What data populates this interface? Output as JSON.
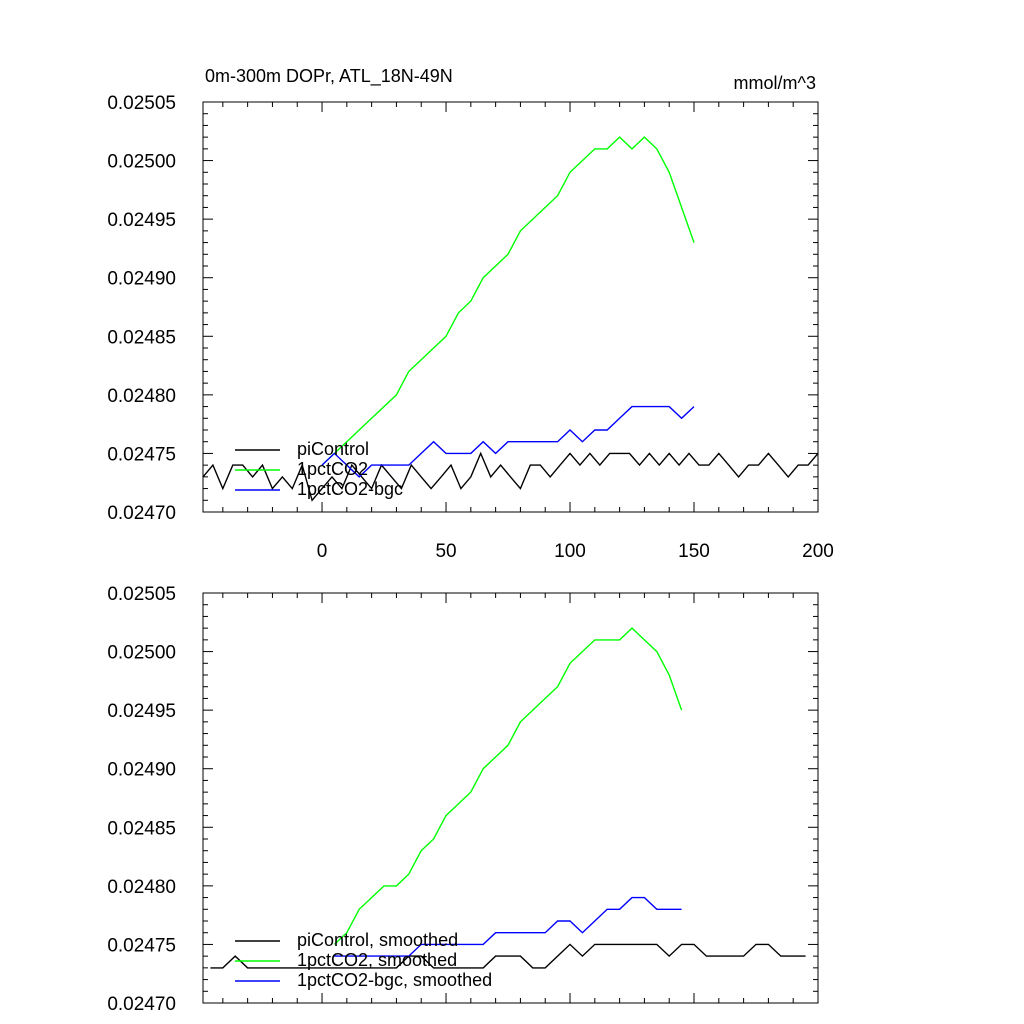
{
  "chart_data": [
    {
      "type": "line",
      "title": "0m-300m DOPr, ATL_18N-49N",
      "units": "mmol/m^3",
      "xlim": [
        -48,
        200
      ],
      "ylim": [
        0.0247,
        0.02505
      ],
      "x_ticks": [
        "0",
        "50",
        "100",
        "150",
        "200"
      ],
      "y_ticks": [
        "0.02505",
        "0.02500",
        "0.02495",
        "0.02490",
        "0.02485",
        "0.02480",
        "0.02475",
        "0.02470"
      ],
      "legend_position": "bottom-left",
      "series": [
        {
          "name": "piControl",
          "color": "#000000",
          "x": [
            -48,
            -44,
            -40,
            -36,
            -32,
            -28,
            -24,
            -20,
            -16,
            -12,
            -8,
            -4,
            0,
            4,
            8,
            12,
            16,
            20,
            24,
            28,
            32,
            36,
            40,
            44,
            48,
            52,
            56,
            60,
            64,
            68,
            72,
            76,
            80,
            84,
            88,
            92,
            96,
            100,
            104,
            108,
            112,
            116,
            120,
            124,
            128,
            132,
            136,
            140,
            144,
            148,
            152,
            156,
            160,
            164,
            168,
            172,
            176,
            180,
            184,
            188,
            192,
            196,
            200
          ],
          "values": [
            0.02473,
            0.02474,
            0.02472,
            0.02474,
            0.02474,
            0.02473,
            0.02474,
            0.02472,
            0.02473,
            0.02472,
            0.02474,
            0.02471,
            0.02472,
            0.02473,
            0.02472,
            0.02474,
            0.02473,
            0.02472,
            0.02474,
            0.02473,
            0.02472,
            0.02474,
            0.02473,
            0.02472,
            0.02473,
            0.02474,
            0.02472,
            0.02473,
            0.02475,
            0.02473,
            0.02474,
            0.02473,
            0.02472,
            0.02474,
            0.02474,
            0.02473,
            0.02474,
            0.02475,
            0.02474,
            0.02475,
            0.02474,
            0.02475,
            0.02475,
            0.02475,
            0.02474,
            0.02475,
            0.02474,
            0.02475,
            0.02474,
            0.02475,
            0.02474,
            0.02474,
            0.02475,
            0.02474,
            0.02473,
            0.02474,
            0.02474,
            0.02475,
            0.02474,
            0.02473,
            0.02474,
            0.02474,
            0.02475
          ]
        },
        {
          "name": "1pctCO2",
          "color": "#00ff00",
          "x": [
            0,
            5,
            10,
            15,
            20,
            25,
            30,
            35,
            40,
            45,
            50,
            55,
            60,
            65,
            70,
            75,
            80,
            85,
            90,
            95,
            100,
            105,
            110,
            115,
            120,
            125,
            130,
            135,
            140,
            145,
            150
          ],
          "values": [
            0.02474,
            0.02475,
            0.02476,
            0.02477,
            0.02478,
            0.02479,
            0.0248,
            0.02482,
            0.02483,
            0.02484,
            0.02485,
            0.02487,
            0.02488,
            0.0249,
            0.02491,
            0.02492,
            0.02494,
            0.02495,
            0.02496,
            0.02497,
            0.02499,
            0.025,
            0.02501,
            0.02501,
            0.02502,
            0.02501,
            0.02502,
            0.02501,
            0.02499,
            0.02496,
            0.02493
          ]
        },
        {
          "name": "1pctCO2-bgc",
          "color": "#0000ff",
          "x": [
            0,
            5,
            10,
            15,
            20,
            25,
            30,
            35,
            40,
            45,
            50,
            55,
            60,
            65,
            70,
            75,
            80,
            85,
            90,
            95,
            100,
            105,
            110,
            115,
            120,
            125,
            130,
            135,
            140,
            145,
            150
          ],
          "values": [
            0.02474,
            0.02475,
            0.02474,
            0.02473,
            0.02474,
            0.02474,
            0.02474,
            0.02474,
            0.02475,
            0.02476,
            0.02475,
            0.02475,
            0.02475,
            0.02476,
            0.02475,
            0.02476,
            0.02476,
            0.02476,
            0.02476,
            0.02476,
            0.02477,
            0.02476,
            0.02477,
            0.02477,
            0.02478,
            0.02479,
            0.02479,
            0.02479,
            0.02479,
            0.02478,
            0.02479
          ]
        }
      ]
    },
    {
      "type": "line",
      "xlim": [
        -48,
        200
      ],
      "ylim": [
        0.0247,
        0.02505
      ],
      "y_ticks": [
        "0.02505",
        "0.02500",
        "0.02495",
        "0.02490",
        "0.02485",
        "0.02480",
        "0.02475",
        "0.02470"
      ],
      "legend_position": "bottom-left",
      "series": [
        {
          "name": "piControl, smoothed",
          "color": "#000000",
          "x": [
            -45,
            -40,
            -35,
            -30,
            -25,
            -20,
            -15,
            -10,
            -5,
            0,
            5,
            10,
            15,
            20,
            25,
            30,
            35,
            40,
            45,
            50,
            55,
            60,
            65,
            70,
            75,
            80,
            85,
            90,
            95,
            100,
            105,
            110,
            115,
            120,
            125,
            130,
            135,
            140,
            145,
            150,
            155,
            160,
            165,
            170,
            175,
            180,
            185,
            190,
            195
          ],
          "values": [
            0.02473,
            0.02473,
            0.02474,
            0.02473,
            0.02473,
            0.02473,
            0.02473,
            0.02473,
            0.02473,
            0.02473,
            0.02473,
            0.02473,
            0.02473,
            0.02473,
            0.02473,
            0.02473,
            0.02474,
            0.02474,
            0.02473,
            0.02473,
            0.02473,
            0.02473,
            0.02473,
            0.02474,
            0.02474,
            0.02474,
            0.02473,
            0.02473,
            0.02474,
            0.02475,
            0.02474,
            0.02475,
            0.02475,
            0.02475,
            0.02475,
            0.02475,
            0.02475,
            0.02474,
            0.02475,
            0.02475,
            0.02474,
            0.02474,
            0.02474,
            0.02474,
            0.02475,
            0.02475,
            0.02474,
            0.02474,
            0.02474
          ]
        },
        {
          "name": "1pctCO2, smoothed",
          "color": "#00ff00",
          "x": [
            5,
            10,
            15,
            20,
            25,
            30,
            35,
            40,
            45,
            50,
            55,
            60,
            65,
            70,
            75,
            80,
            85,
            90,
            95,
            100,
            105,
            110,
            115,
            120,
            125,
            130,
            135,
            140,
            145
          ],
          "values": [
            0.02475,
            0.02476,
            0.02478,
            0.02479,
            0.0248,
            0.0248,
            0.02481,
            0.02483,
            0.02484,
            0.02486,
            0.02487,
            0.02488,
            0.0249,
            0.02491,
            0.02492,
            0.02494,
            0.02495,
            0.02496,
            0.02497,
            0.02499,
            0.025,
            0.02501,
            0.02501,
            0.02501,
            0.02502,
            0.02501,
            0.025,
            0.02498,
            0.02495
          ]
        },
        {
          "name": "1pctCO2-bgc, smoothed",
          "color": "#0000ff",
          "x": [
            5,
            10,
            15,
            20,
            25,
            30,
            35,
            40,
            45,
            50,
            55,
            60,
            65,
            70,
            75,
            80,
            85,
            90,
            95,
            100,
            105,
            110,
            115,
            120,
            125,
            130,
            135,
            140,
            145
          ],
          "values": [
            0.02474,
            0.02474,
            0.02474,
            0.02474,
            0.02474,
            0.02474,
            0.02474,
            0.02475,
            0.02475,
            0.02475,
            0.02475,
            0.02475,
            0.02475,
            0.02476,
            0.02476,
            0.02476,
            0.02476,
            0.02476,
            0.02477,
            0.02477,
            0.02476,
            0.02477,
            0.02478,
            0.02478,
            0.02479,
            0.02479,
            0.02478,
            0.02478,
            0.02478
          ]
        }
      ]
    }
  ]
}
